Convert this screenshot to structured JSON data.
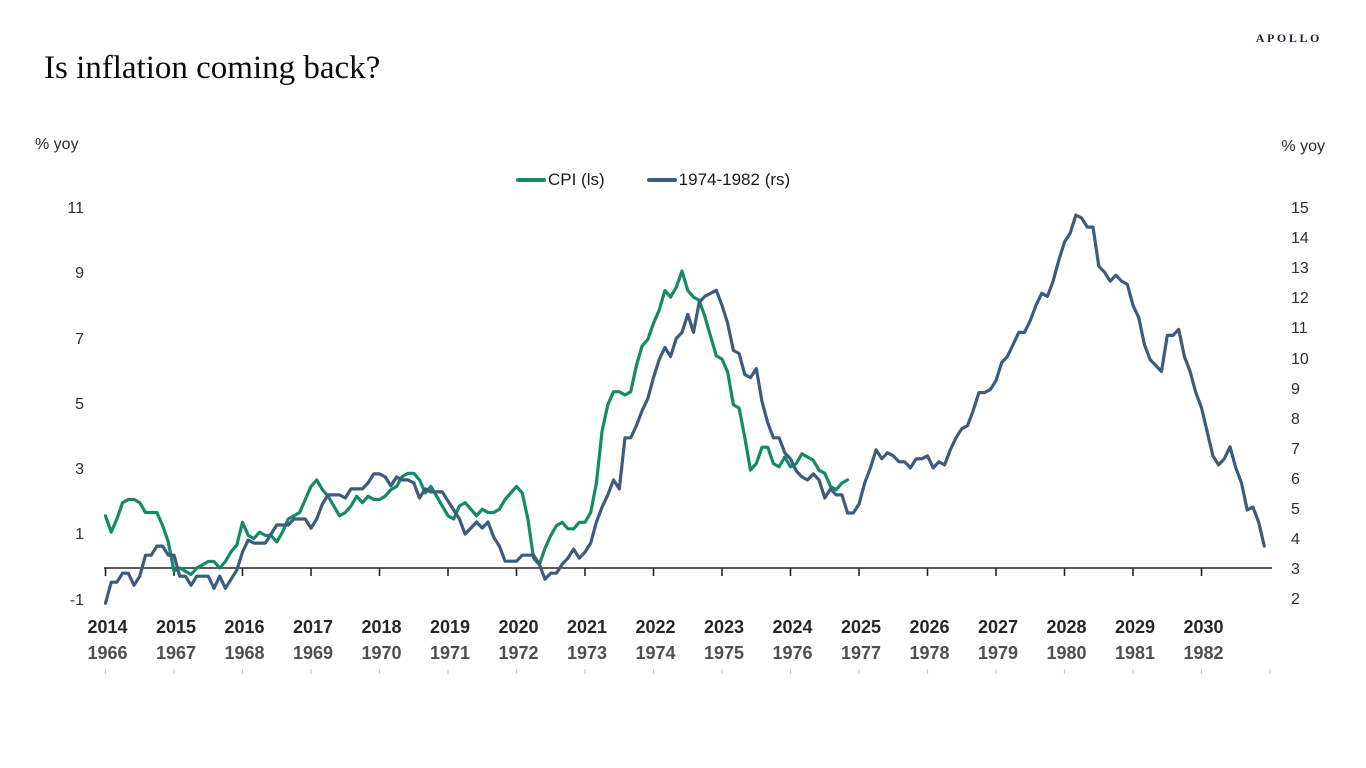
{
  "brand": {
    "logo": "APOLLO"
  },
  "header": {
    "title": "Is inflation coming back?"
  },
  "chart_data": {
    "type": "line",
    "title": "Is inflation coming back?",
    "grid": false,
    "legend_position": "top-center",
    "left_axis": {
      "label": "% yoy",
      "range": [
        -1,
        11
      ],
      "ticks": [
        11,
        9,
        7,
        5,
        3,
        1,
        -1
      ]
    },
    "right_axis": {
      "label": "% yoy",
      "range": [
        2,
        15
      ],
      "ticks": [
        15,
        14,
        13,
        12,
        11,
        10,
        9,
        8,
        7,
        6,
        5,
        4,
        3,
        2
      ]
    },
    "x_axis": {
      "top_years": [
        "2014",
        "2015",
        "2016",
        "2017",
        "2018",
        "2019",
        "2020",
        "2021",
        "2022",
        "2023",
        "2024",
        "2025",
        "2026",
        "2027",
        "2028",
        "2029",
        "2030"
      ],
      "bottom_years": [
        "1966",
        "1967",
        "1968",
        "1969",
        "1970",
        "1971",
        "1972",
        "1973",
        "1974",
        "1975",
        "1976",
        "1977",
        "1978",
        "1979",
        "1980",
        "1981",
        "1982"
      ]
    },
    "series": [
      {
        "name": "CPI (ls)",
        "axis": "left",
        "color": "#158a67",
        "start": "2014-01",
        "frequency": "monthly",
        "values": [
          1.6,
          1.1,
          1.5,
          2.0,
          2.1,
          2.1,
          2.0,
          1.7,
          1.7,
          1.7,
          1.3,
          0.8,
          -0.1,
          0.0,
          -0.1,
          -0.2,
          0.0,
          0.1,
          0.2,
          0.2,
          0.0,
          0.2,
          0.5,
          0.7,
          1.4,
          1.0,
          0.9,
          1.1,
          1.0,
          1.0,
          0.8,
          1.1,
          1.5,
          1.6,
          1.7,
          2.1,
          2.5,
          2.7,
          2.4,
          2.2,
          1.9,
          1.6,
          1.7,
          1.9,
          2.2,
          2.0,
          2.2,
          2.1,
          2.1,
          2.2,
          2.4,
          2.5,
          2.8,
          2.9,
          2.9,
          2.7,
          2.3,
          2.5,
          2.2,
          1.9,
          1.6,
          1.5,
          1.9,
          2.0,
          1.8,
          1.6,
          1.8,
          1.7,
          1.7,
          1.8,
          2.1,
          2.3,
          2.5,
          2.3,
          1.5,
          0.3,
          0.1,
          0.6,
          1.0,
          1.3,
          1.4,
          1.2,
          1.2,
          1.4,
          1.4,
          1.7,
          2.6,
          4.2,
          5.0,
          5.4,
          5.4,
          5.3,
          5.4,
          6.2,
          6.8,
          7.0,
          7.5,
          7.9,
          8.5,
          8.3,
          8.6,
          9.1,
          8.5,
          8.3,
          8.2,
          7.7,
          7.1,
          6.5,
          6.4,
          6.0,
          5.0,
          4.9,
          4.0,
          3.0,
          3.2,
          3.7,
          3.7,
          3.2,
          3.1,
          3.4,
          3.1,
          3.2,
          3.5,
          3.4,
          3.3,
          3.0,
          2.9,
          2.5,
          2.4,
          2.6,
          2.7
        ]
      },
      {
        "name": "1974-1982 (rs)",
        "axis": "right",
        "color": "#3d5c7d",
        "start": "1966-01",
        "frequency": "monthly",
        "values": [
          1.9,
          2.6,
          2.6,
          2.9,
          2.9,
          2.5,
          2.8,
          3.5,
          3.5,
          3.8,
          3.8,
          3.5,
          3.5,
          2.8,
          2.8,
          2.5,
          2.8,
          2.8,
          2.8,
          2.4,
          2.8,
          2.4,
          2.7,
          3.0,
          3.6,
          4.0,
          3.9,
          3.9,
          3.9,
          4.2,
          4.5,
          4.5,
          4.5,
          4.7,
          4.7,
          4.7,
          4.4,
          4.7,
          5.2,
          5.5,
          5.5,
          5.5,
          5.4,
          5.7,
          5.7,
          5.7,
          5.9,
          6.2,
          6.2,
          6.1,
          5.8,
          6.1,
          6.0,
          6.0,
          5.9,
          5.4,
          5.7,
          5.6,
          5.6,
          5.6,
          5.3,
          5.0,
          4.7,
          4.2,
          4.4,
          4.6,
          4.4,
          4.6,
          4.1,
          3.8,
          3.3,
          3.3,
          3.3,
          3.5,
          3.5,
          3.5,
          3.2,
          2.7,
          2.9,
          2.9,
          3.2,
          3.4,
          3.7,
          3.4,
          3.6,
          3.9,
          4.6,
          5.1,
          5.5,
          6.0,
          5.7,
          7.4,
          7.4,
          7.8,
          8.3,
          8.7,
          9.4,
          10.0,
          10.4,
          10.1,
          10.7,
          10.9,
          11.5,
          10.9,
          11.9,
          12.1,
          12.2,
          12.3,
          11.8,
          11.2,
          10.3,
          10.2,
          9.5,
          9.4,
          9.7,
          8.6,
          7.9,
          7.4,
          7.4,
          6.9,
          6.7,
          6.3,
          6.1,
          6.0,
          6.2,
          6.0,
          5.4,
          5.7,
          5.5,
          5.5,
          4.9,
          4.9,
          5.2,
          5.9,
          6.4,
          7.0,
          6.7,
          6.9,
          6.8,
          6.6,
          6.6,
          6.4,
          6.7,
          6.7,
          6.8,
          6.4,
          6.6,
          6.5,
          7.0,
          7.4,
          7.7,
          7.8,
          8.3,
          8.9,
          8.9,
          9.0,
          9.3,
          9.9,
          10.1,
          10.5,
          10.9,
          10.9,
          11.3,
          11.8,
          12.2,
          12.1,
          12.6,
          13.3,
          13.9,
          14.2,
          14.8,
          14.7,
          14.4,
          14.4,
          13.1,
          12.9,
          12.6,
          12.8,
          12.6,
          12.5,
          11.8,
          11.4,
          10.5,
          10.0,
          9.8,
          9.6,
          10.8,
          10.8,
          11.0,
          10.1,
          9.6,
          8.9,
          8.4,
          7.6,
          6.8,
          6.5,
          6.7,
          7.1,
          6.4,
          5.9,
          5.0,
          5.1,
          4.6,
          3.8
        ]
      }
    ]
  }
}
